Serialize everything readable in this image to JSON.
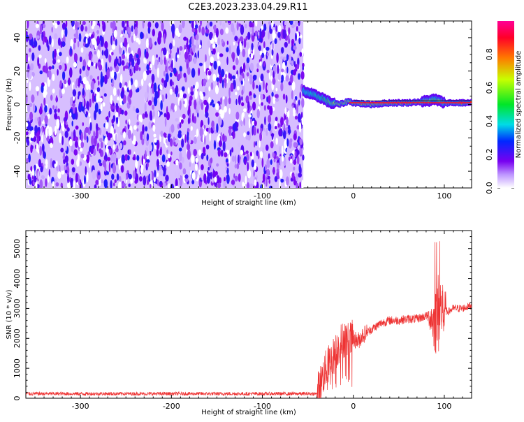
{
  "title": "C2E3.2023.233.04.29.R11",
  "chart_data": [
    {
      "type": "heatmap",
      "xlabel": "Height of straight line (km)",
      "ylabel": "Frequency (Hz)",
      "xlim": [
        -360,
        130
      ],
      "ylim": [
        -50,
        50
      ],
      "xticks": [
        -300,
        -200,
        -100,
        0,
        100
      ],
      "yticks": [
        -40,
        -20,
        0,
        20,
        40
      ],
      "grid": false,
      "noise_region": {
        "x": [
          -360,
          -55
        ],
        "amplitude_range": [
          0.0,
          0.25
        ]
      },
      "signal_trace": [
        {
          "x": -55,
          "y": 8,
          "amp": 0.45
        },
        {
          "x": -45,
          "y": 6,
          "amp": 0.5
        },
        {
          "x": -35,
          "y": 4,
          "amp": 0.55
        },
        {
          "x": -25,
          "y": 1,
          "amp": 0.7
        },
        {
          "x": -15,
          "y": 0,
          "amp": 0.85
        },
        {
          "x": -5,
          "y": 2,
          "amp": 0.8
        },
        {
          "x": 0,
          "y": 1,
          "amp": 0.9
        },
        {
          "x": 20,
          "y": 0,
          "amp": 0.85
        },
        {
          "x": 40,
          "y": 1,
          "amp": 0.95
        },
        {
          "x": 60,
          "y": 1,
          "amp": 0.95
        },
        {
          "x": 80,
          "y": 2,
          "amp": 0.9
        },
        {
          "x": 90,
          "y": 3,
          "amp": 0.6
        },
        {
          "x": 100,
          "y": 1,
          "amp": 0.95
        },
        {
          "x": 130,
          "y": 1,
          "amp": 1.0
        }
      ],
      "colorbar": {
        "label": "Normalized spectral amplitude",
        "range": [
          0.0,
          1.0
        ],
        "ticks": [
          0.0,
          0.2,
          0.4,
          0.6,
          0.8
        ],
        "tick_labels": [
          "0.0",
          "0.2",
          "0.4",
          "0.6",
          "0.8"
        ]
      }
    },
    {
      "type": "line",
      "xlabel": "Height of straight line (km)",
      "ylabel": "SNR (10 * v/v)",
      "xlim": [
        -360,
        130
      ],
      "ylim": [
        0,
        5600
      ],
      "xticks": [
        -300,
        -200,
        -100,
        0,
        100
      ],
      "yticks": [
        0,
        1000,
        2000,
        3000,
        4000,
        5000
      ],
      "grid": false,
      "color": "#ee3333",
      "series": [
        {
          "x": [
            -360,
            -300,
            -200,
            -100,
            -40,
            -35,
            -30,
            -20,
            -15,
            -10,
            -5,
            0,
            5,
            10,
            20,
            30,
            40,
            50,
            60,
            70,
            80,
            85,
            90,
            95,
            100,
            105,
            110,
            120,
            130
          ],
          "y": [
            150,
            150,
            150,
            150,
            150,
            600,
            1000,
            1500,
            1800,
            2000,
            1900,
            2000,
            1900,
            2100,
            2300,
            2500,
            2600,
            2600,
            2650,
            2650,
            2750,
            2700,
            2500,
            3000,
            2900,
            2900,
            3000,
            3000,
            3100
          ]
        }
      ]
    }
  ]
}
